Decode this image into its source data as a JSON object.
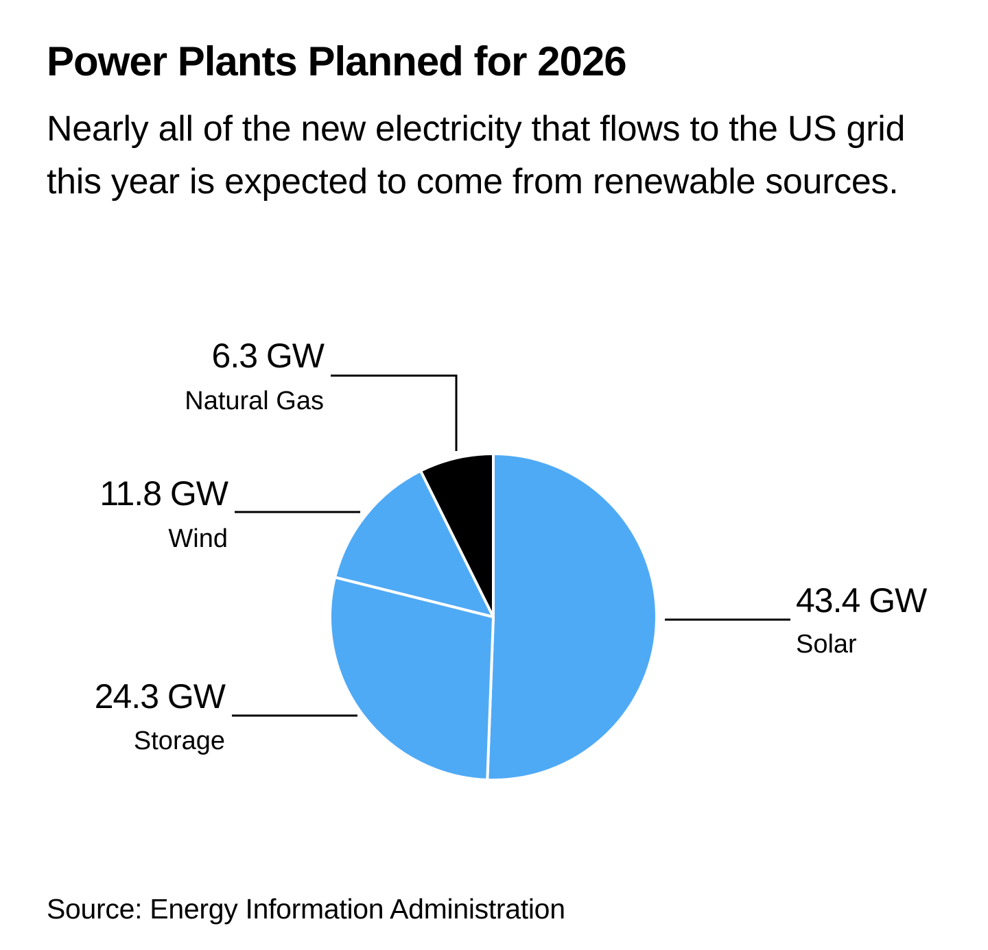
{
  "header": {
    "title": "Power Plants Planned for 2026",
    "subtitle": "Nearly all of the new electricity that flows to the US grid this year is expected to come from renewable sources."
  },
  "footer": {
    "source": "Source: Energy Information Administration"
  },
  "chart_data": {
    "type": "pie",
    "title": "Power Plants Planned for 2026",
    "subtitle": "Nearly all of the new electricity that flows to the US grid this year is expected to come from renewable sources.",
    "unit": "GW",
    "start": "12 o'clock",
    "direction": "clockwise",
    "slices": [
      {
        "name": "Solar",
        "value": 43.4,
        "label": "43.4 GW",
        "color": "#4faaf5",
        "label_side": "right"
      },
      {
        "name": "Storage",
        "value": 24.3,
        "label": "24.3 GW",
        "color": "#4faaf5",
        "label_side": "left"
      },
      {
        "name": "Wind",
        "value": 11.8,
        "label": "11.8 GW",
        "color": "#4faaf5",
        "label_side": "left"
      },
      {
        "name": "Natural Gas",
        "value": 6.3,
        "label": "6.3 GW",
        "color": "#000000",
        "label_side": "top-left"
      }
    ],
    "source": "Source: Energy Information Administration",
    "legend": "none (direct labels)"
  }
}
